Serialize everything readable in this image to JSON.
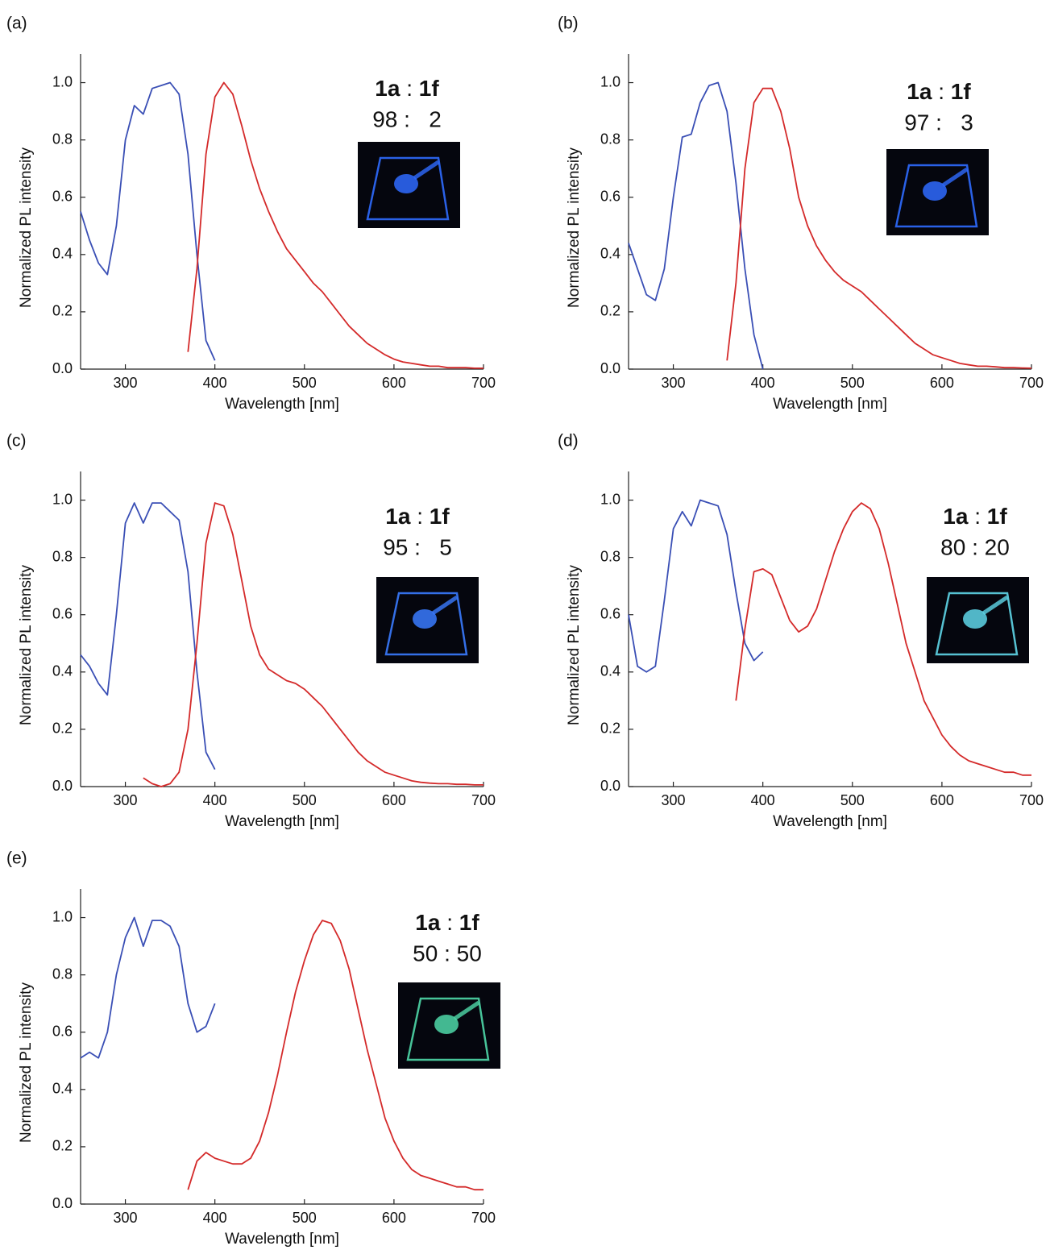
{
  "chart_data": [
    {
      "type": "line",
      "panel": "(a)",
      "xlabel": "Wavelength [nm]",
      "ylabel": "Normalized PL intensity",
      "xlim": [
        250,
        700
      ],
      "ylim": [
        0,
        1.1
      ],
      "xticks": [
        300,
        400,
        500,
        600,
        700
      ],
      "yticks": [
        {
          "value": 0,
          "label": "0.0"
        },
        {
          "value": 0.2,
          "label": "0.2"
        },
        {
          "value": 0.4,
          "label": "0.4"
        },
        {
          "value": 0.6,
          "label": "0.6"
        },
        {
          "value": 0.8,
          "label": "0.8"
        },
        {
          "value": 1,
          "label": "1.0"
        }
      ],
      "annotation": {
        "label": [
          "1a",
          ":",
          "1f"
        ],
        "ratio": "98 :   2"
      },
      "x": [
        250,
        260,
        270,
        280,
        290,
        300,
        310,
        320,
        330,
        340,
        350,
        360,
        370,
        380,
        390,
        400,
        410,
        420,
        430,
        440,
        450,
        460,
        470,
        480,
        490,
        500,
        510,
        520,
        530,
        540,
        550,
        560,
        570,
        580,
        590,
        600,
        610,
        620,
        630,
        640,
        650,
        660,
        670,
        680,
        690,
        700
      ],
      "series": [
        {
          "color": "#3a4fb5",
          "values": [
            0.55,
            0.45,
            0.37,
            0.33,
            0.5,
            0.8,
            0.92,
            0.89,
            0.98,
            0.99,
            1.0,
            0.96,
            0.75,
            0.4,
            0.1,
            0.03,
            null,
            null,
            null,
            null,
            null,
            null,
            null,
            null,
            null,
            null,
            null,
            null,
            null,
            null,
            null,
            null,
            null,
            null,
            null,
            null,
            null,
            null,
            null,
            null,
            null,
            null,
            null,
            null,
            null,
            null
          ]
        },
        {
          "color": "#d42a2a",
          "values": [
            null,
            null,
            null,
            null,
            null,
            null,
            null,
            null,
            null,
            null,
            null,
            null,
            0.06,
            0.35,
            0.75,
            0.95,
            1.0,
            0.96,
            0.85,
            0.73,
            0.63,
            0.55,
            0.48,
            0.42,
            0.38,
            0.34,
            0.3,
            0.27,
            0.23,
            0.19,
            0.15,
            0.12,
            0.09,
            0.07,
            0.05,
            0.035,
            0.025,
            0.02,
            0.015,
            0.01,
            0.01,
            0.005,
            0.005,
            0.005,
            0.003,
            0.003
          ]
        }
      ]
    },
    {
      "type": "line",
      "panel": "(b)",
      "xlabel": "Wavelength [nm]",
      "ylabel": "Normalized PL intensity",
      "xlim": [
        250,
        700
      ],
      "ylim": [
        0,
        1.1
      ],
      "xticks": [
        300,
        400,
        500,
        600,
        700
      ],
      "yticks": [
        {
          "value": 0,
          "label": "0.0"
        },
        {
          "value": 0.2,
          "label": "0.2"
        },
        {
          "value": 0.4,
          "label": "0.4"
        },
        {
          "value": 0.6,
          "label": "0.6"
        },
        {
          "value": 0.8,
          "label": "0.8"
        },
        {
          "value": 1,
          "label": "1.0"
        }
      ],
      "annotation": {
        "label": [
          "1a",
          ":",
          "1f"
        ],
        "ratio": "97 :   3"
      },
      "x": [
        250,
        260,
        270,
        280,
        290,
        300,
        310,
        320,
        330,
        340,
        350,
        360,
        370,
        380,
        390,
        400,
        410,
        420,
        430,
        440,
        450,
        460,
        470,
        480,
        490,
        500,
        510,
        520,
        530,
        540,
        550,
        560,
        570,
        580,
        590,
        600,
        610,
        620,
        630,
        640,
        650,
        660,
        670,
        680,
        690,
        700
      ],
      "series": [
        {
          "color": "#3a4fb5",
          "values": [
            0.44,
            0.35,
            0.26,
            0.24,
            0.35,
            0.6,
            0.81,
            0.82,
            0.93,
            0.99,
            1.0,
            0.9,
            0.65,
            0.35,
            0.12,
            0.0,
            null,
            null,
            null,
            null,
            null,
            null,
            null,
            null,
            null,
            null,
            null,
            null,
            null,
            null,
            null,
            null,
            null,
            null,
            null,
            null,
            null,
            null,
            null,
            null,
            null,
            null,
            null,
            null,
            null,
            null
          ]
        },
        {
          "color": "#d42a2a",
          "values": [
            null,
            null,
            null,
            null,
            null,
            null,
            null,
            null,
            null,
            null,
            null,
            0.03,
            0.3,
            0.7,
            0.93,
            0.98,
            0.98,
            0.9,
            0.77,
            0.6,
            0.5,
            0.43,
            0.38,
            0.34,
            0.31,
            0.29,
            0.27,
            0.24,
            0.21,
            0.18,
            0.15,
            0.12,
            0.09,
            0.07,
            0.05,
            0.04,
            0.03,
            0.02,
            0.015,
            0.01,
            0.01,
            0.008,
            0.005,
            0.005,
            0.004,
            0.003
          ]
        }
      ]
    },
    {
      "type": "line",
      "panel": "(c)",
      "xlabel": "Wavelength [nm]",
      "ylabel": "Normalized PL intensity",
      "xlim": [
        250,
        700
      ],
      "ylim": [
        0,
        1.1
      ],
      "xticks": [
        300,
        400,
        500,
        600,
        700
      ],
      "yticks": [
        {
          "value": 0,
          "label": "0.0"
        },
        {
          "value": 0.2,
          "label": "0.2"
        },
        {
          "value": 0.4,
          "label": "0.4"
        },
        {
          "value": 0.6,
          "label": "0.6"
        },
        {
          "value": 0.8,
          "label": "0.8"
        },
        {
          "value": 1,
          "label": "1.0"
        }
      ],
      "annotation": {
        "label": [
          "1a",
          ":",
          "1f"
        ],
        "ratio": "95 :   5"
      },
      "x": [
        250,
        260,
        270,
        280,
        290,
        300,
        310,
        320,
        330,
        340,
        350,
        360,
        370,
        380,
        390,
        400,
        410,
        420,
        430,
        440,
        450,
        460,
        470,
        480,
        490,
        500,
        510,
        520,
        530,
        540,
        550,
        560,
        570,
        580,
        590,
        600,
        610,
        620,
        630,
        640,
        650,
        660,
        670,
        680,
        690,
        700
      ],
      "series": [
        {
          "color": "#3a4fb5",
          "values": [
            0.46,
            0.42,
            0.36,
            0.32,
            0.6,
            0.92,
            0.99,
            0.92,
            0.99,
            0.99,
            0.96,
            0.93,
            0.75,
            0.4,
            0.12,
            0.06,
            null,
            null,
            null,
            null,
            null,
            null,
            null,
            null,
            null,
            null,
            null,
            null,
            null,
            null,
            null,
            null,
            null,
            null,
            null,
            null,
            null,
            null,
            null,
            null,
            null,
            null,
            null,
            null,
            null,
            null
          ]
        },
        {
          "color": "#d42a2a",
          "values": [
            null,
            null,
            null,
            null,
            null,
            null,
            null,
            0.03,
            0.01,
            0.0,
            0.01,
            0.05,
            0.2,
            0.5,
            0.85,
            0.99,
            0.98,
            0.88,
            0.72,
            0.56,
            0.46,
            0.41,
            0.39,
            0.37,
            0.36,
            0.34,
            0.31,
            0.28,
            0.24,
            0.2,
            0.16,
            0.12,
            0.09,
            0.07,
            0.05,
            0.04,
            0.03,
            0.02,
            0.015,
            0.012,
            0.01,
            0.01,
            0.008,
            0.008,
            0.006,
            0.006
          ]
        }
      ]
    },
    {
      "type": "line",
      "panel": "(d)",
      "xlabel": "Wavelength [nm]",
      "ylabel": "Normalized PL intensity",
      "xlim": [
        250,
        700
      ],
      "ylim": [
        0,
        1.1
      ],
      "xticks": [
        300,
        400,
        500,
        600,
        700
      ],
      "yticks": [
        {
          "value": 0,
          "label": "0.0"
        },
        {
          "value": 0.2,
          "label": "0.2"
        },
        {
          "value": 0.4,
          "label": "0.4"
        },
        {
          "value": 0.6,
          "label": "0.6"
        },
        {
          "value": 0.8,
          "label": "0.8"
        },
        {
          "value": 1,
          "label": "1.0"
        }
      ],
      "annotation": {
        "label": [
          "1a",
          ":",
          "1f"
        ],
        "ratio": "80 : 20"
      },
      "x": [
        250,
        260,
        270,
        280,
        290,
        300,
        310,
        320,
        330,
        340,
        350,
        360,
        370,
        380,
        390,
        400,
        410,
        420,
        430,
        440,
        450,
        460,
        470,
        480,
        490,
        500,
        510,
        520,
        530,
        540,
        550,
        560,
        570,
        580,
        590,
        600,
        610,
        620,
        630,
        640,
        650,
        660,
        670,
        680,
        690,
        700
      ],
      "series": [
        {
          "color": "#3a4fb5",
          "values": [
            0.6,
            0.42,
            0.4,
            0.42,
            0.65,
            0.9,
            0.96,
            0.91,
            1.0,
            0.99,
            0.98,
            0.88,
            0.68,
            0.5,
            0.44,
            0.47,
            null,
            null,
            null,
            null,
            null,
            null,
            null,
            null,
            null,
            null,
            null,
            null,
            null,
            null,
            null,
            null,
            null,
            null,
            null,
            null,
            null,
            null,
            null,
            null,
            null,
            null,
            null,
            null,
            null,
            null
          ]
        },
        {
          "color": "#d42a2a",
          "values": [
            null,
            null,
            null,
            null,
            null,
            null,
            null,
            null,
            null,
            null,
            null,
            null,
            0.3,
            0.55,
            0.75,
            0.76,
            0.74,
            0.66,
            0.58,
            0.54,
            0.56,
            0.62,
            0.72,
            0.82,
            0.9,
            0.96,
            0.99,
            0.97,
            0.9,
            0.78,
            0.64,
            0.5,
            0.4,
            0.3,
            0.24,
            0.18,
            0.14,
            0.11,
            0.09,
            0.08,
            0.07,
            0.06,
            0.05,
            0.05,
            0.04,
            0.04
          ]
        }
      ]
    },
    {
      "type": "line",
      "panel": "(e)",
      "xlabel": "Wavelength [nm]",
      "ylabel": "Normalized PL intensity",
      "xlim": [
        250,
        700
      ],
      "ylim": [
        0,
        1.1
      ],
      "xticks": [
        300,
        400,
        500,
        600,
        700
      ],
      "yticks": [
        {
          "value": 0,
          "label": "0.0"
        },
        {
          "value": 0.2,
          "label": "0.2"
        },
        {
          "value": 0.4,
          "label": "0.4"
        },
        {
          "value": 0.6,
          "label": "0.6"
        },
        {
          "value": 0.8,
          "label": "0.8"
        },
        {
          "value": 1,
          "label": "1.0"
        }
      ],
      "annotation": {
        "label": [
          "1a",
          ":",
          "1f"
        ],
        "ratio": "50 : 50"
      },
      "x": [
        250,
        260,
        270,
        280,
        290,
        300,
        310,
        320,
        330,
        340,
        350,
        360,
        370,
        380,
        390,
        400,
        410,
        420,
        430,
        440,
        450,
        460,
        470,
        480,
        490,
        500,
        510,
        520,
        530,
        540,
        550,
        560,
        570,
        580,
        590,
        600,
        610,
        620,
        630,
        640,
        650,
        660,
        670,
        680,
        690,
        700
      ],
      "series": [
        {
          "color": "#3a4fb5",
          "values": [
            0.51,
            0.53,
            0.51,
            0.6,
            0.8,
            0.93,
            1.0,
            0.9,
            0.99,
            0.99,
            0.97,
            0.9,
            0.7,
            0.6,
            0.62,
            0.7,
            null,
            null,
            null,
            null,
            null,
            null,
            null,
            null,
            null,
            null,
            null,
            null,
            null,
            null,
            null,
            null,
            null,
            null,
            null,
            null,
            null,
            null,
            null,
            null,
            null,
            null,
            null,
            null,
            null,
            null
          ]
        },
        {
          "color": "#d42a2a",
          "values": [
            null,
            null,
            null,
            null,
            null,
            null,
            null,
            null,
            null,
            null,
            null,
            null,
            0.05,
            0.15,
            0.18,
            0.16,
            0.15,
            0.14,
            0.14,
            0.16,
            0.22,
            0.32,
            0.45,
            0.6,
            0.74,
            0.85,
            0.94,
            0.99,
            0.98,
            0.92,
            0.82,
            0.68,
            0.54,
            0.42,
            0.3,
            0.22,
            0.16,
            0.12,
            0.1,
            0.09,
            0.08,
            0.07,
            0.06,
            0.06,
            0.05,
            0.05
          ]
        }
      ]
    }
  ]
}
